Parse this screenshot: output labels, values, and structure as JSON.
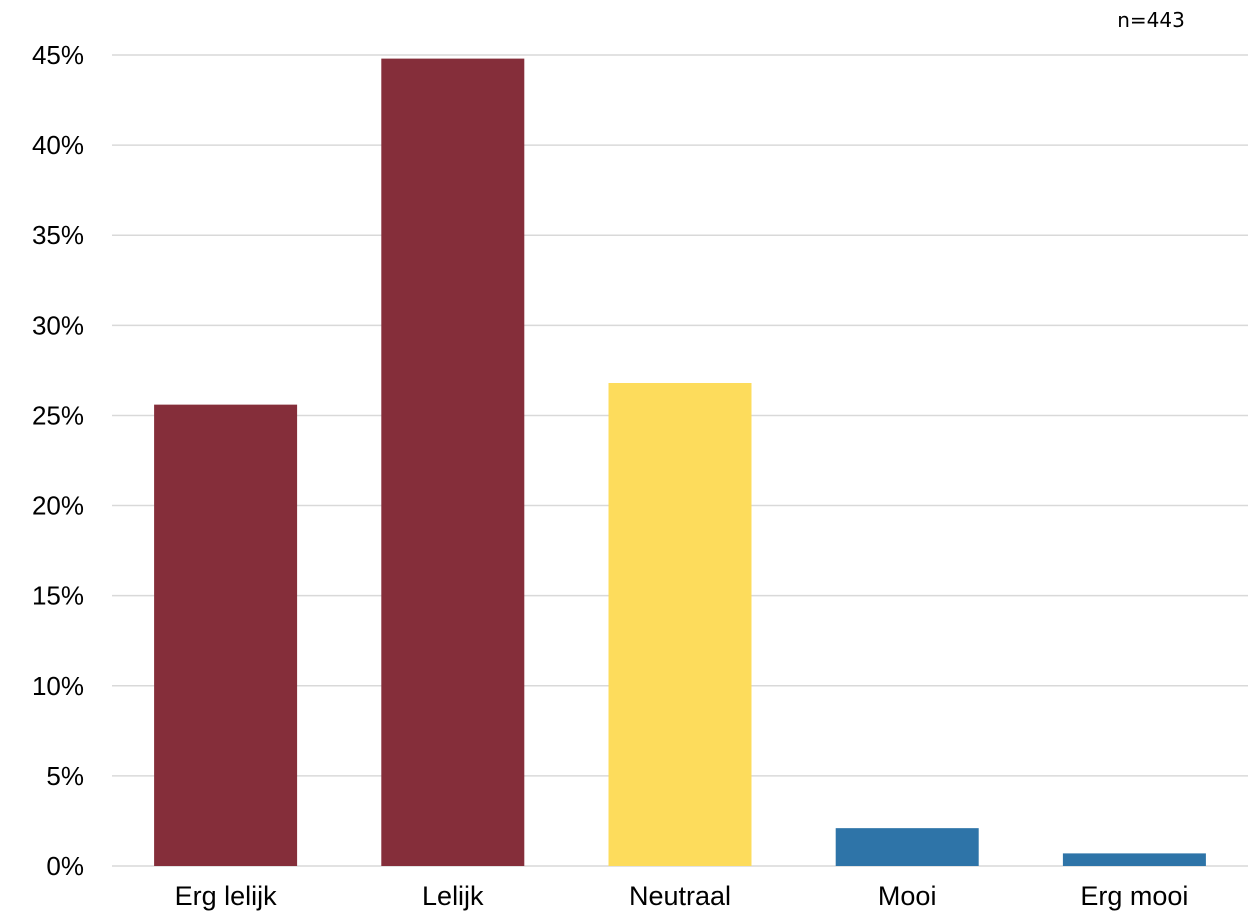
{
  "chart_data": {
    "type": "bar",
    "categories": [
      "Erg lelijk",
      "Lelijk",
      "Neutraal",
      "Mooi",
      "Erg mooi"
    ],
    "values": [
      25.6,
      44.8,
      26.8,
      2.1,
      0.7
    ],
    "bar_colors": [
      "#852e3a",
      "#852e3a",
      "#fddc5c",
      "#2e74a8",
      "#2e74a8"
    ],
    "y_ticks": [
      "0%",
      "5%",
      "10%",
      "15%",
      "20%",
      "25%",
      "30%",
      "35%",
      "40%",
      "45%"
    ],
    "ylim": [
      0,
      45
    ],
    "y_unit": "%",
    "grid": true,
    "legend": "none",
    "annotation": "n=443"
  },
  "colors": {
    "grid": "#d9d9d9",
    "text": "#000000",
    "background": "#ffffff"
  }
}
